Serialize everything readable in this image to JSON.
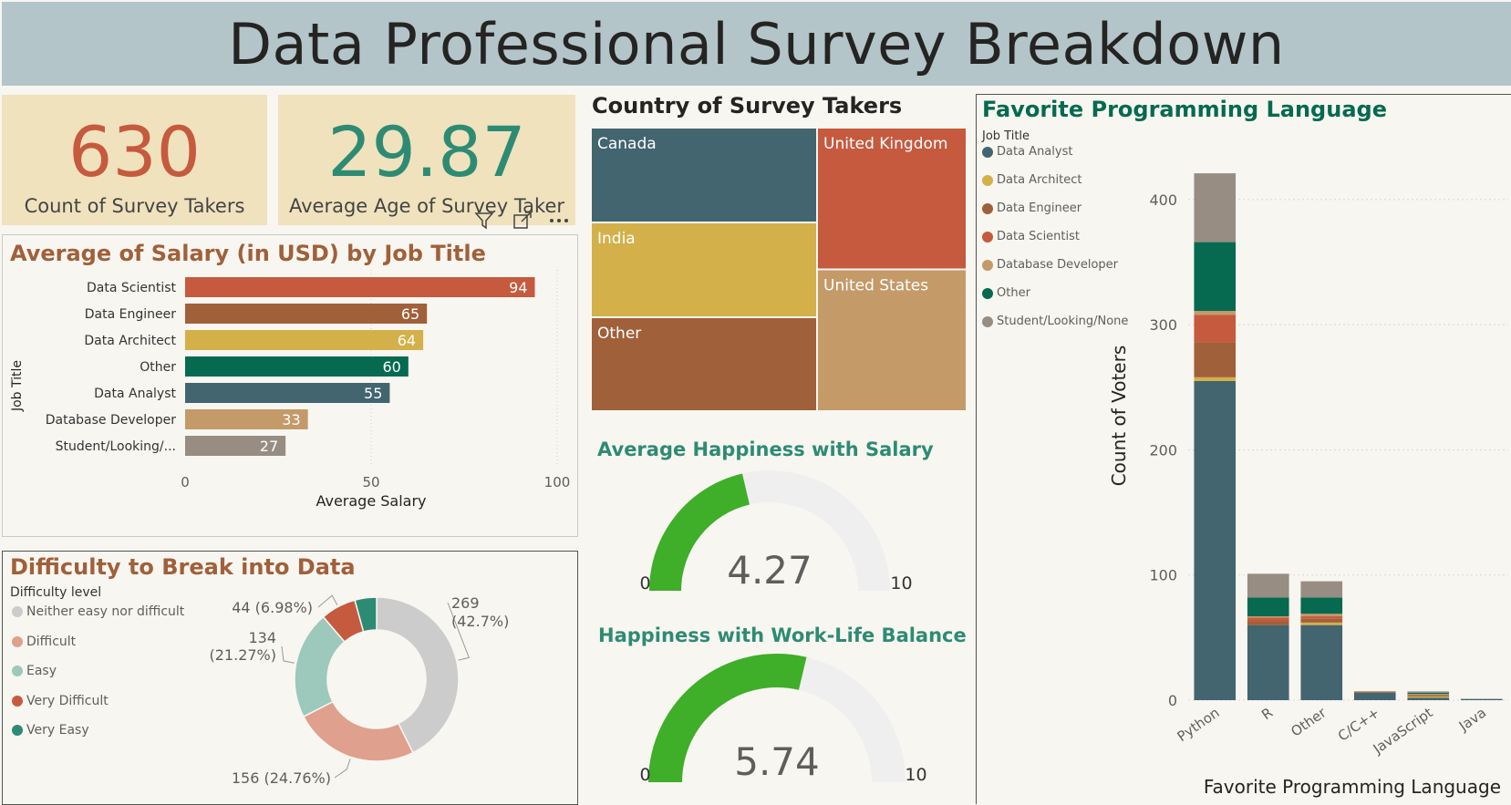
{
  "page": {
    "title": "Data Professional Survey Breakdown"
  },
  "kpis": {
    "count": {
      "value": "630",
      "label": "Count of Survey Takers",
      "color": "#c55a3f"
    },
    "age": {
      "value": "29.87",
      "label": "Average Age of Survey Taker",
      "color": "#2e8b73"
    }
  },
  "toolbar": {
    "icons": [
      "filter-icon",
      "focus-mode-icon",
      "more-options-icon"
    ]
  },
  "colors": {
    "Data Analyst": "#426570",
    "Data Architect": "#d4b04a",
    "Data Engineer": "#a0603a",
    "Data Scientist": "#c55a3f",
    "Database Developer": "#c49a69",
    "Other": "#056a4f",
    "Student/Looking/None": "#978d82"
  },
  "salary_chart": {
    "title": "Average of Salary (in USD) by Job Title",
    "chart_data": {
      "type": "bar",
      "orientation": "horizontal",
      "categories": [
        "Data Scientist",
        "Data Engineer",
        "Data Architect",
        "Other",
        "Data Analyst",
        "Database Developer",
        "Student/Looking/..."
      ],
      "color_keys": [
        "Data Scientist",
        "Data Engineer",
        "Data Architect",
        "Other",
        "Data Analyst",
        "Database Developer",
        "Student/Looking/None"
      ],
      "values": [
        94,
        65,
        64,
        60,
        55,
        33,
        27
      ],
      "xlabel": "Average Salary",
      "ylabel": "Job Title",
      "xlim": [
        0,
        100
      ],
      "xticks": [
        0,
        50,
        100
      ]
    }
  },
  "country_chart": {
    "title": "Country of Survey Takers",
    "chart_data": {
      "type": "treemap",
      "items": [
        {
          "label": "Canada",
          "color": "#426570"
        },
        {
          "label": "United Kingdom",
          "color": "#c55a3f"
        },
        {
          "label": "India",
          "color": "#d4b04a"
        },
        {
          "label": "United States",
          "color": "#c49a69"
        },
        {
          "label": "Other",
          "color": "#a0603a"
        }
      ]
    }
  },
  "gauge_salary": {
    "title": "Average Happiness with Salary",
    "chart_data": {
      "type": "gauge",
      "value": 4.27,
      "value_label": "4.27",
      "min": 0,
      "max": 10,
      "min_label": "0",
      "max_label": "10"
    }
  },
  "gauge_wlb": {
    "title": "Happiness with Work-Life Balance",
    "chart_data": {
      "type": "gauge",
      "value": 5.74,
      "value_label": "5.74",
      "min": 0,
      "max": 10,
      "min_label": "0",
      "max_label": "10"
    }
  },
  "difficulty_chart": {
    "title": "Difficulty to Break into Data",
    "legend_title": "Difficulty level",
    "chart_data": {
      "type": "pie",
      "donut": true,
      "slices": [
        {
          "label": "Neither easy nor difficult",
          "value": 269,
          "percent": 42.7,
          "data_label_1": "269",
          "data_label_2": "(42.7%)",
          "color": "#cccccc"
        },
        {
          "label": "Difficult",
          "value": 156,
          "percent": 24.76,
          "data_label_1": "156 (24.76%)",
          "data_label_2": "",
          "color": "#dfa08e"
        },
        {
          "label": "Easy",
          "value": 134,
          "percent": 21.27,
          "data_label_1": "134",
          "data_label_2": "(21.27%)",
          "color": "#9dc8bc"
        },
        {
          "label": "Very Difficult",
          "value": 44,
          "percent": 6.98,
          "data_label_1": "44 (6.98%)",
          "data_label_2": "",
          "color": "#c55a3f"
        },
        {
          "label": "Very Easy",
          "value": 27,
          "percent": 4.29,
          "data_label_1": "",
          "data_label_2": "",
          "color": "#2e8b73"
        }
      ]
    }
  },
  "language_chart": {
    "title": "Favorite Programming Language",
    "legend_title": "Job Title",
    "chart_data": {
      "type": "bar",
      "stacked": true,
      "categories": [
        "Python",
        "R",
        "Other",
        "C/C++",
        "JavaScript",
        "Java"
      ],
      "series": [
        {
          "name": "Data Analyst",
          "values": [
            255,
            60,
            60,
            6,
            2,
            1
          ]
        },
        {
          "name": "Data Architect",
          "values": [
            3,
            0,
            2,
            0,
            1,
            0
          ]
        },
        {
          "name": "Data Engineer",
          "values": [
            28,
            3,
            3,
            1,
            1,
            0
          ]
        },
        {
          "name": "Data Scientist",
          "values": [
            22,
            3,
            2,
            0,
            0,
            0
          ]
        },
        {
          "name": "Database Developer",
          "values": [
            3,
            1,
            2,
            0,
            1,
            0
          ]
        },
        {
          "name": "Other",
          "values": [
            55,
            15,
            13,
            0,
            1,
            0
          ]
        },
        {
          "name": "Student/Looking/None",
          "values": [
            55,
            19,
            13,
            0,
            1,
            0
          ]
        }
      ],
      "xlabel": "Favorite Programming Language",
      "ylabel": "Count of Voters",
      "ylim": [
        0,
        440
      ],
      "yticks": [
        0,
        100,
        200,
        300,
        400
      ],
      "grid": true
    }
  }
}
